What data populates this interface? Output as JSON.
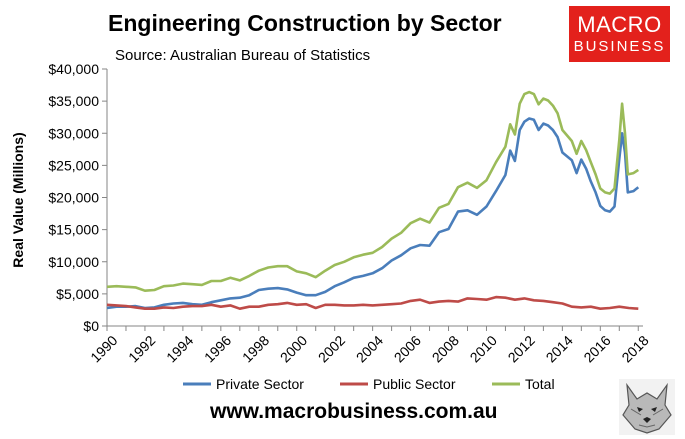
{
  "header": {
    "title": "Engineering Construction by Sector",
    "subtitle": "Source: Australian Bureau of Statistics"
  },
  "logo": {
    "line1": "MACRO",
    "line2": "BUSINESS",
    "color": "#e3211c"
  },
  "footer": {
    "website": "www.macrobusiness.com.au"
  },
  "chart_data": {
    "type": "line",
    "title": "Engineering Construction by Sector",
    "ylabel": "Real Value (Millions)",
    "xlabel": "",
    "ylim": [
      0,
      40000
    ],
    "xlim": [
      1990,
      2018.25
    ],
    "y_ticks": [
      0,
      5000,
      10000,
      15000,
      20000,
      25000,
      30000,
      35000,
      40000
    ],
    "y_tick_labels": [
      "$0",
      "$5,000",
      "$10,000",
      "$15,000",
      "$20,000",
      "$25,000",
      "$30,000",
      "$35,000",
      "$40,000"
    ],
    "x_ticks": [
      1990,
      1992,
      1994,
      1996,
      1998,
      2000,
      2002,
      2004,
      2006,
      2008,
      2010,
      2012,
      2014,
      2016,
      2018
    ],
    "x_tick_labels": [
      "1990",
      "1992",
      "1994",
      "1996",
      "1998",
      "2000",
      "2002",
      "2004",
      "2006",
      "2008",
      "2010",
      "2012",
      "2014",
      "2016",
      "2018"
    ],
    "grid": false,
    "legend_position": "bottom",
    "series": [
      {
        "name": "Private Sector",
        "color": "#4a7ebb",
        "points": [
          [
            1990,
            2800
          ],
          [
            1990.5,
            3000
          ],
          [
            1991,
            3000
          ],
          [
            1991.5,
            3100
          ],
          [
            1992,
            2800
          ],
          [
            1992.5,
            2900
          ],
          [
            1993,
            3300
          ],
          [
            1993.5,
            3500
          ],
          [
            1994,
            3600
          ],
          [
            1994.5,
            3400
          ],
          [
            1995,
            3300
          ],
          [
            1995.5,
            3700
          ],
          [
            1996,
            4000
          ],
          [
            1996.5,
            4300
          ],
          [
            1997,
            4400
          ],
          [
            1997.5,
            4800
          ],
          [
            1998,
            5600
          ],
          [
            1998.5,
            5800
          ],
          [
            1999,
            5900
          ],
          [
            1999.5,
            5700
          ],
          [
            2000,
            5200
          ],
          [
            2000.5,
            4800
          ],
          [
            2001,
            4800
          ],
          [
            2001.5,
            5300
          ],
          [
            2002,
            6200
          ],
          [
            2002.5,
            6800
          ],
          [
            2003,
            7500
          ],
          [
            2003.5,
            7800
          ],
          [
            2004,
            8200
          ],
          [
            2004.5,
            9000
          ],
          [
            2005,
            10200
          ],
          [
            2005.5,
            11000
          ],
          [
            2006,
            12100
          ],
          [
            2006.5,
            12600
          ],
          [
            2007,
            12500
          ],
          [
            2007.5,
            14600
          ],
          [
            2008,
            15100
          ],
          [
            2008.5,
            17800
          ],
          [
            2009,
            18000
          ],
          [
            2009.5,
            17300
          ],
          [
            2010,
            18600
          ],
          [
            2010.5,
            21000
          ],
          [
            2011,
            23500
          ],
          [
            2011.25,
            27300
          ],
          [
            2011.5,
            25700
          ],
          [
            2011.75,
            30500
          ],
          [
            2012,
            31800
          ],
          [
            2012.25,
            32300
          ],
          [
            2012.5,
            32100
          ],
          [
            2012.75,
            30500
          ],
          [
            2013,
            31500
          ],
          [
            2013.25,
            31200
          ],
          [
            2013.5,
            30500
          ],
          [
            2013.75,
            29400
          ],
          [
            2014,
            27000
          ],
          [
            2014.5,
            25800
          ],
          [
            2014.75,
            23800
          ],
          [
            2015,
            25900
          ],
          [
            2015.25,
            24500
          ],
          [
            2015.5,
            22500
          ],
          [
            2015.75,
            20800
          ],
          [
            2016,
            18700
          ],
          [
            2016.25,
            18000
          ],
          [
            2016.5,
            17800
          ],
          [
            2016.75,
            18600
          ],
          [
            2017,
            26000
          ],
          [
            2017.15,
            30000
          ],
          [
            2017.3,
            27000
          ],
          [
            2017.45,
            20800
          ],
          [
            2017.75,
            21000
          ],
          [
            2018,
            21600
          ]
        ]
      },
      {
        "name": "Public Sector",
        "color": "#be4b48",
        "points": [
          [
            1990,
            3300
          ],
          [
            1990.5,
            3200
          ],
          [
            1991,
            3100
          ],
          [
            1991.5,
            2900
          ],
          [
            1992,
            2700
          ],
          [
            1992.5,
            2700
          ],
          [
            1993,
            2900
          ],
          [
            1993.5,
            2800
          ],
          [
            1994,
            3000
          ],
          [
            1994.5,
            3100
          ],
          [
            1995,
            3100
          ],
          [
            1995.5,
            3300
          ],
          [
            1996,
            3000
          ],
          [
            1996.5,
            3200
          ],
          [
            1997,
            2700
          ],
          [
            1997.5,
            3000
          ],
          [
            1998,
            3000
          ],
          [
            1998.5,
            3300
          ],
          [
            1999,
            3400
          ],
          [
            1999.5,
            3600
          ],
          [
            2000,
            3300
          ],
          [
            2000.5,
            3400
          ],
          [
            2001,
            2800
          ],
          [
            2001.5,
            3300
          ],
          [
            2002,
            3300
          ],
          [
            2002.5,
            3200
          ],
          [
            2003,
            3200
          ],
          [
            2003.5,
            3300
          ],
          [
            2004,
            3200
          ],
          [
            2004.5,
            3300
          ],
          [
            2005,
            3400
          ],
          [
            2005.5,
            3500
          ],
          [
            2006,
            3900
          ],
          [
            2006.5,
            4100
          ],
          [
            2007,
            3600
          ],
          [
            2007.5,
            3800
          ],
          [
            2008,
            3900
          ],
          [
            2008.5,
            3800
          ],
          [
            2009,
            4300
          ],
          [
            2009.5,
            4200
          ],
          [
            2010,
            4100
          ],
          [
            2010.5,
            4500
          ],
          [
            2011,
            4400
          ],
          [
            2011.5,
            4100
          ],
          [
            2012,
            4300
          ],
          [
            2012.5,
            4000
          ],
          [
            2013,
            3900
          ],
          [
            2013.5,
            3700
          ],
          [
            2014,
            3500
          ],
          [
            2014.5,
            3000
          ],
          [
            2015,
            2900
          ],
          [
            2015.5,
            3000
          ],
          [
            2016,
            2700
          ],
          [
            2016.5,
            2800
          ],
          [
            2017,
            3000
          ],
          [
            2017.5,
            2800
          ],
          [
            2018,
            2700
          ]
        ]
      },
      {
        "name": "Total",
        "color": "#9bbb59",
        "points": [
          [
            1990,
            6100
          ],
          [
            1990.5,
            6200
          ],
          [
            1991,
            6100
          ],
          [
            1991.5,
            6000
          ],
          [
            1992,
            5500
          ],
          [
            1992.5,
            5600
          ],
          [
            1993,
            6200
          ],
          [
            1993.5,
            6300
          ],
          [
            1994,
            6600
          ],
          [
            1994.5,
            6500
          ],
          [
            1995,
            6400
          ],
          [
            1995.5,
            7000
          ],
          [
            1996,
            7000
          ],
          [
            1996.5,
            7500
          ],
          [
            1997,
            7100
          ],
          [
            1997.5,
            7800
          ],
          [
            1998,
            8600
          ],
          [
            1998.5,
            9100
          ],
          [
            1999,
            9300
          ],
          [
            1999.5,
            9300
          ],
          [
            2000,
            8500
          ],
          [
            2000.5,
            8200
          ],
          [
            2001,
            7600
          ],
          [
            2001.5,
            8600
          ],
          [
            2002,
            9500
          ],
          [
            2002.5,
            10000
          ],
          [
            2003,
            10700
          ],
          [
            2003.5,
            11100
          ],
          [
            2004,
            11400
          ],
          [
            2004.5,
            12300
          ],
          [
            2005,
            13600
          ],
          [
            2005.5,
            14500
          ],
          [
            2006,
            16000
          ],
          [
            2006.5,
            16700
          ],
          [
            2007,
            16100
          ],
          [
            2007.5,
            18400
          ],
          [
            2008,
            19000
          ],
          [
            2008.5,
            21600
          ],
          [
            2009,
            22300
          ],
          [
            2009.5,
            21500
          ],
          [
            2010,
            22700
          ],
          [
            2010.5,
            25500
          ],
          [
            2011,
            27900
          ],
          [
            2011.25,
            31400
          ],
          [
            2011.5,
            29800
          ],
          [
            2011.75,
            34600
          ],
          [
            2012,
            36100
          ],
          [
            2012.25,
            36400
          ],
          [
            2012.5,
            36100
          ],
          [
            2012.75,
            34500
          ],
          [
            2013,
            35400
          ],
          [
            2013.25,
            35100
          ],
          [
            2013.5,
            34300
          ],
          [
            2013.75,
            33100
          ],
          [
            2014,
            30500
          ],
          [
            2014.5,
            28800
          ],
          [
            2014.75,
            26800
          ],
          [
            2015,
            28800
          ],
          [
            2015.25,
            27400
          ],
          [
            2015.5,
            25500
          ],
          [
            2015.75,
            23600
          ],
          [
            2016,
            21400
          ],
          [
            2016.25,
            20800
          ],
          [
            2016.5,
            20600
          ],
          [
            2016.75,
            21400
          ],
          [
            2017,
            29000
          ],
          [
            2017.15,
            34600
          ],
          [
            2017.3,
            30000
          ],
          [
            2017.45,
            23600
          ],
          [
            2017.75,
            23800
          ],
          [
            2018,
            24300
          ]
        ]
      }
    ]
  }
}
